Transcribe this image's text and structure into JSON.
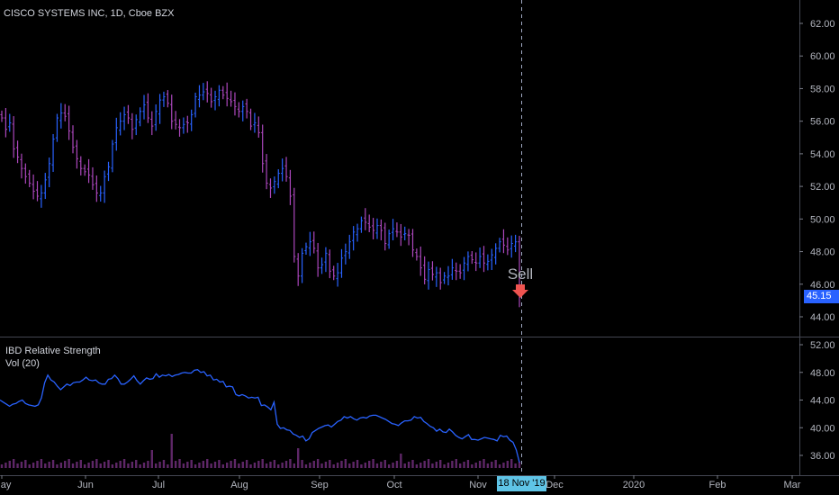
{
  "header": {
    "legend": "CISCO SYSTEMS INC, 1D, Cboe BZX"
  },
  "indicator": {
    "title": "IBD Relative Strength",
    "vol_title": "Vol (20)"
  },
  "signal": {
    "label": "Sell"
  },
  "crosshair": {
    "date_label": "18 Nov '19"
  },
  "price_tag": {
    "value": "45.15",
    "color": "#2962ff"
  },
  "colors": {
    "up": "#2962ff",
    "down": "#ab47bc",
    "rs_line": "#2962ff",
    "sell": "#ef5350",
    "vol": "#ab47bc"
  },
  "chart_data": [
    {
      "type": "ohlc",
      "title": "CISCO SYSTEMS INC, 1D, Cboe BZX",
      "ylim": [
        43.0,
        63.0
      ],
      "y_ticks": [
        "62.00",
        "60.00",
        "58.00",
        "56.00",
        "54.00",
        "52.00",
        "50.00",
        "48.00",
        "46.00",
        "44.00"
      ],
      "x_ticks": [
        "May",
        "Jun",
        "Jul",
        "Aug",
        "Sep",
        "Oct",
        "Nov",
        "Dec",
        "2020",
        "Feb",
        "Mar"
      ],
      "last_price": 45.15,
      "closes": [
        56.2,
        55.5,
        55.9,
        54.3,
        53.8,
        53.1,
        52.6,
        52.2,
        51.7,
        51.4,
        51.6,
        52.4,
        53.4,
        54.9,
        56.2,
        56.5,
        56.3,
        55.4,
        54.4,
        53.7,
        53.1,
        52.9,
        52.7,
        52.1,
        51.6,
        51.6,
        52.6,
        53.2,
        54.6,
        55.6,
        56.0,
        56.4,
        56.2,
        55.5,
        56.1,
        56.6,
        57.0,
        56.2,
        55.7,
        56.6,
        57.3,
        57.5,
        57.1,
        56.0,
        55.8,
        55.6,
        55.8,
        55.9,
        56.4,
        57.5,
        57.6,
        57.8,
        57.7,
        57.2,
        57.5,
        57.9,
        57.6,
        57.4,
        57.2,
        56.9,
        56.6,
        56.9,
        56.6,
        55.7,
        55.9,
        55.3,
        53.4,
        52.2,
        51.9,
        52.3,
        52.8,
        53.1,
        52.6,
        51.4,
        47.7,
        46.5,
        47.9,
        48.3,
        48.6,
        48.2,
        47.0,
        47.2,
        47.9,
        46.8,
        46.5,
        46.7,
        47.6,
        48.0,
        48.6,
        49.2,
        49.4,
        49.9,
        49.8,
        49.5,
        49.3,
        49.6,
        49.3,
        48.5,
        49.1,
        49.4,
        49.2,
        48.9,
        49.1,
        49.0,
        48.1,
        47.7,
        47.0,
        46.3,
        46.9,
        46.6,
        46.7,
        46.1,
        46.5,
        46.5,
        47.0,
        46.8,
        46.7,
        47.3,
        47.7,
        47.5,
        47.3,
        47.7,
        47.3,
        47.4,
        47.8,
        48.2,
        48.6,
        48.4,
        48.1,
        48.5,
        48.6,
        45.2
      ],
      "sell_signal_index": 136
    },
    {
      "type": "line",
      "series_name": "IBD Relative Strength",
      "ylim": [
        34.0,
        53.0
      ],
      "y_ticks": [
        "52.00",
        "48.00",
        "44.00",
        "40.00",
        "36.00"
      ],
      "rs_values": [
        44.0,
        43.7,
        43.4,
        43.1,
        43.4,
        43.5,
        43.8,
        44.0,
        43.5,
        43.3,
        43.2,
        43.1,
        43.3,
        44.3,
        46.5,
        47.6,
        46.9,
        46.6,
        46.0,
        45.5,
        45.9,
        46.3,
        46.1,
        46.5,
        46.6,
        46.6,
        46.9,
        47.3,
        46.9,
        46.8,
        46.9,
        46.5,
        46.3,
        46.3,
        47.0,
        47.1,
        47.6,
        47.1,
        46.3,
        46.3,
        46.6,
        47.0,
        47.5,
        46.8,
        46.3,
        46.8,
        47.2,
        47.0,
        47.1,
        47.8,
        47.3,
        47.6,
        47.5,
        47.7,
        47.4,
        47.6,
        47.7,
        47.9,
        48.0,
        47.9,
        47.9,
        48.3,
        48.4,
        48.0,
        48.1,
        47.5,
        47.6,
        46.9,
        47.0,
        46.6,
        46.7,
        45.9,
        46.0,
        45.9,
        44.8,
        44.6,
        44.8,
        44.6,
        44.3,
        44.4,
        44.3,
        44.4,
        43.2,
        43.3,
        43.0,
        42.6,
        43.7,
        40.5,
        39.9,
        40.0,
        39.7,
        39.6,
        39.1,
        38.9,
        38.6,
        38.8,
        38.1,
        38.4,
        39.3,
        39.6,
        39.9,
        40.1,
        40.3,
        40.4,
        40.1,
        40.5,
        40.9,
        41.1,
        41.6,
        41.4,
        41.6,
        41.3,
        41.1,
        41.4,
        41.5,
        41.4,
        41.7,
        41.8,
        41.8,
        41.6,
        41.4,
        41.2,
        40.9,
        40.6,
        40.5,
        40.3,
        40.7,
        41.0,
        41.0,
        41.1,
        41.6,
        41.4,
        41.5,
        40.9,
        40.6,
        40.2,
        40.0,
        39.5,
        39.8,
        39.4,
        39.3,
        39.8,
        39.4,
        38.9,
        38.6,
        38.4,
        38.7,
        39.0,
        38.3,
        38.3,
        38.2,
        38.4,
        38.6,
        38.5,
        38.4,
        38.3,
        38.1,
        38.9,
        38.7,
        38.8,
        38.2,
        37.9,
        36.8,
        35.0
      ]
    }
  ]
}
